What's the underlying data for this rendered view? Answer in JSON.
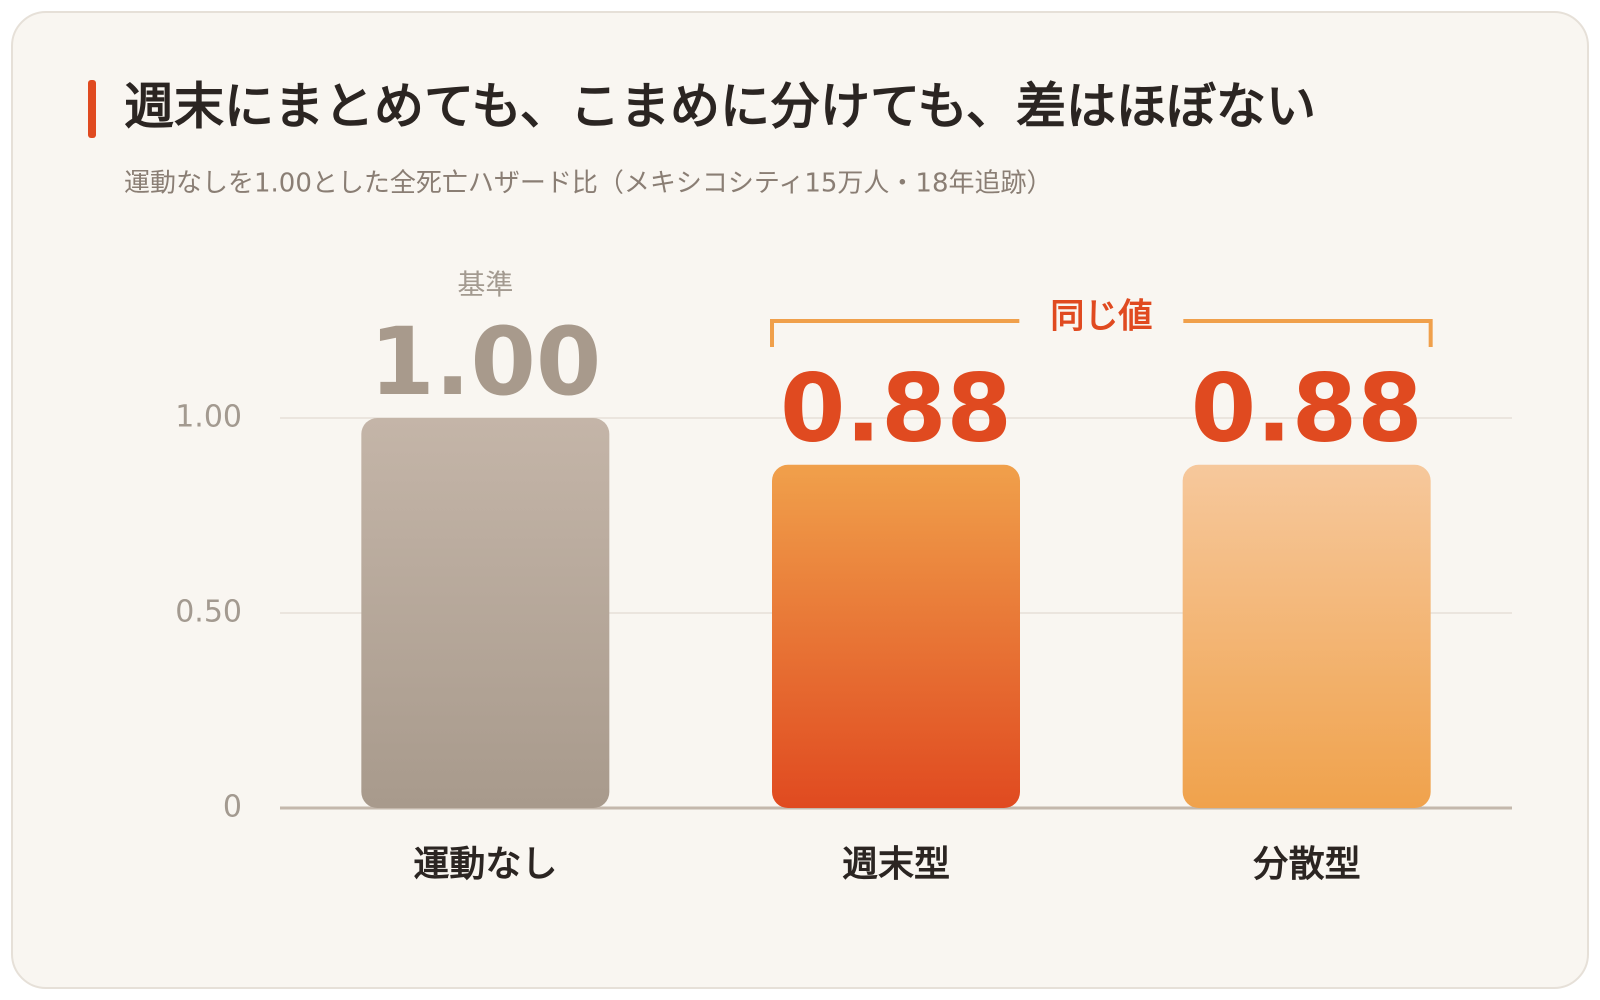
{
  "chart_data": {
    "type": "bar",
    "title": "週末にまとめても、こまめに分けても、差はほぼない",
    "subtitle": "運動なしを1.00とした全死亡ハザード比（メキシコシティ15万人・18年追跡）",
    "categories": [
      "運動なし",
      "週末型",
      "分散型"
    ],
    "values": [
      1.0,
      0.88,
      0.88
    ],
    "value_labels": [
      "1.00",
      "0.88",
      "0.88"
    ],
    "colors": [
      [
        "#c4b5a8",
        "#a89a8c"
      ],
      [
        "#f0a04b",
        "#e04a20"
      ],
      [
        "#f6c89c",
        "#f0a24c"
      ]
    ],
    "label_colors": [
      "#a89a8c",
      "#e04a20",
      "#e04a20"
    ],
    "annotations": {
      "baseline": "基準",
      "same_value": "同じ値"
    },
    "ylim": [
      0,
      1
    ],
    "yticks": [
      0,
      {
        "value": 0.5,
        "label": "0.50"
      },
      {
        "value": 1,
        "label": "1.00"
      }
    ],
    "grid": true
  }
}
